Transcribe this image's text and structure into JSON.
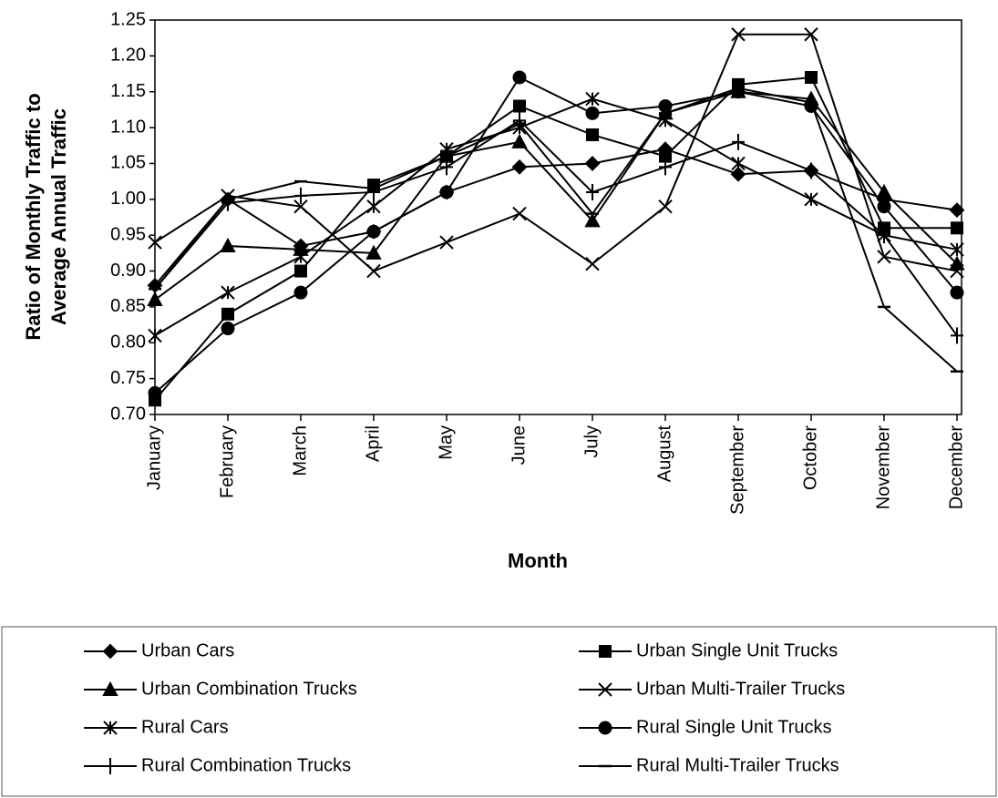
{
  "chart_data": {
    "type": "line",
    "xlabel": "Month",
    "ylabel": [
      "Ratio of Monthly Traffic to",
      "Average Annual Traffic"
    ],
    "categories": [
      "January",
      "February",
      "March",
      "April",
      "May",
      "June",
      "July",
      "August",
      "September",
      "October",
      "November",
      "December"
    ],
    "ylim": [
      0.7,
      1.25
    ],
    "yticks": [
      {
        "value": 0.7,
        "label": "0.70"
      },
      {
        "value": 0.75,
        "label": "0.75"
      },
      {
        "value": 0.8,
        "label": "0.80"
      },
      {
        "value": 0.85,
        "label": "0.85"
      },
      {
        "value": 0.9,
        "label": "0.90"
      },
      {
        "value": 0.95,
        "label": "0.95"
      },
      {
        "value": 1.0,
        "label": "1.00"
      },
      {
        "value": 1.05,
        "label": "1.05"
      },
      {
        "value": 1.1,
        "label": "1.10"
      },
      {
        "value": 1.15,
        "label": "1.15"
      },
      {
        "value": 1.2,
        "label": "1.20"
      },
      {
        "value": 1.25,
        "label": "1.25"
      }
    ],
    "grid": false,
    "legend": "bottom",
    "series": [
      {
        "name": "Urban Cars",
        "color": "#000000",
        "marker": "diamond",
        "values": [
          0.88,
          1.0,
          0.935,
          0.955,
          1.01,
          1.045,
          1.05,
          1.07,
          1.035,
          1.04,
          1.0,
          0.985
        ]
      },
      {
        "name": "Urban Single Unit Trucks",
        "color": "#000000",
        "marker": "square",
        "values": [
          0.72,
          0.84,
          0.9,
          1.02,
          1.06,
          1.13,
          1.09,
          1.06,
          1.16,
          1.17,
          0.96,
          0.96
        ]
      },
      {
        "name": "Urban Combination Trucks",
        "color": "#000000",
        "marker": "triangle",
        "values": [
          0.86,
          0.935,
          0.93,
          0.925,
          1.06,
          1.08,
          0.97,
          1.12,
          1.15,
          1.14,
          1.01,
          0.91
        ]
      },
      {
        "name": "Urban Multi-Trailer Trucks",
        "color": "#000000",
        "marker": "x",
        "values": [
          0.94,
          1.005,
          0.99,
          0.9,
          0.94,
          0.98,
          0.91,
          0.99,
          1.23,
          1.23,
          0.92,
          0.9
        ]
      },
      {
        "name": "Rural Cars",
        "color": "#000000",
        "marker": "asterisk",
        "values": [
          0.81,
          0.87,
          0.92,
          0.99,
          1.07,
          1.1,
          1.14,
          1.11,
          1.05,
          1.0,
          0.95,
          0.93
        ]
      },
      {
        "name": "Rural Single Unit Trucks",
        "color": "#000000",
        "marker": "circle",
        "values": [
          0.73,
          0.82,
          0.87,
          0.955,
          1.01,
          1.17,
          1.12,
          1.13,
          1.15,
          1.13,
          0.99,
          0.87
        ]
      },
      {
        "name": "Rural Combination Trucks",
        "color": "#000000",
        "marker": "plus",
        "values": [
          0.875,
          0.995,
          1.005,
          1.01,
          1.045,
          1.11,
          1.01,
          1.045,
          1.08,
          1.04,
          0.95,
          0.81
        ]
      },
      {
        "name": "Rural Multi-Trailer Trucks",
        "color": "#000000",
        "marker": "dash",
        "values": [
          0.875,
          1.0,
          1.025,
          1.015,
          1.06,
          1.105,
          0.98,
          1.12,
          1.155,
          1.135,
          0.85,
          0.76
        ]
      }
    ]
  }
}
